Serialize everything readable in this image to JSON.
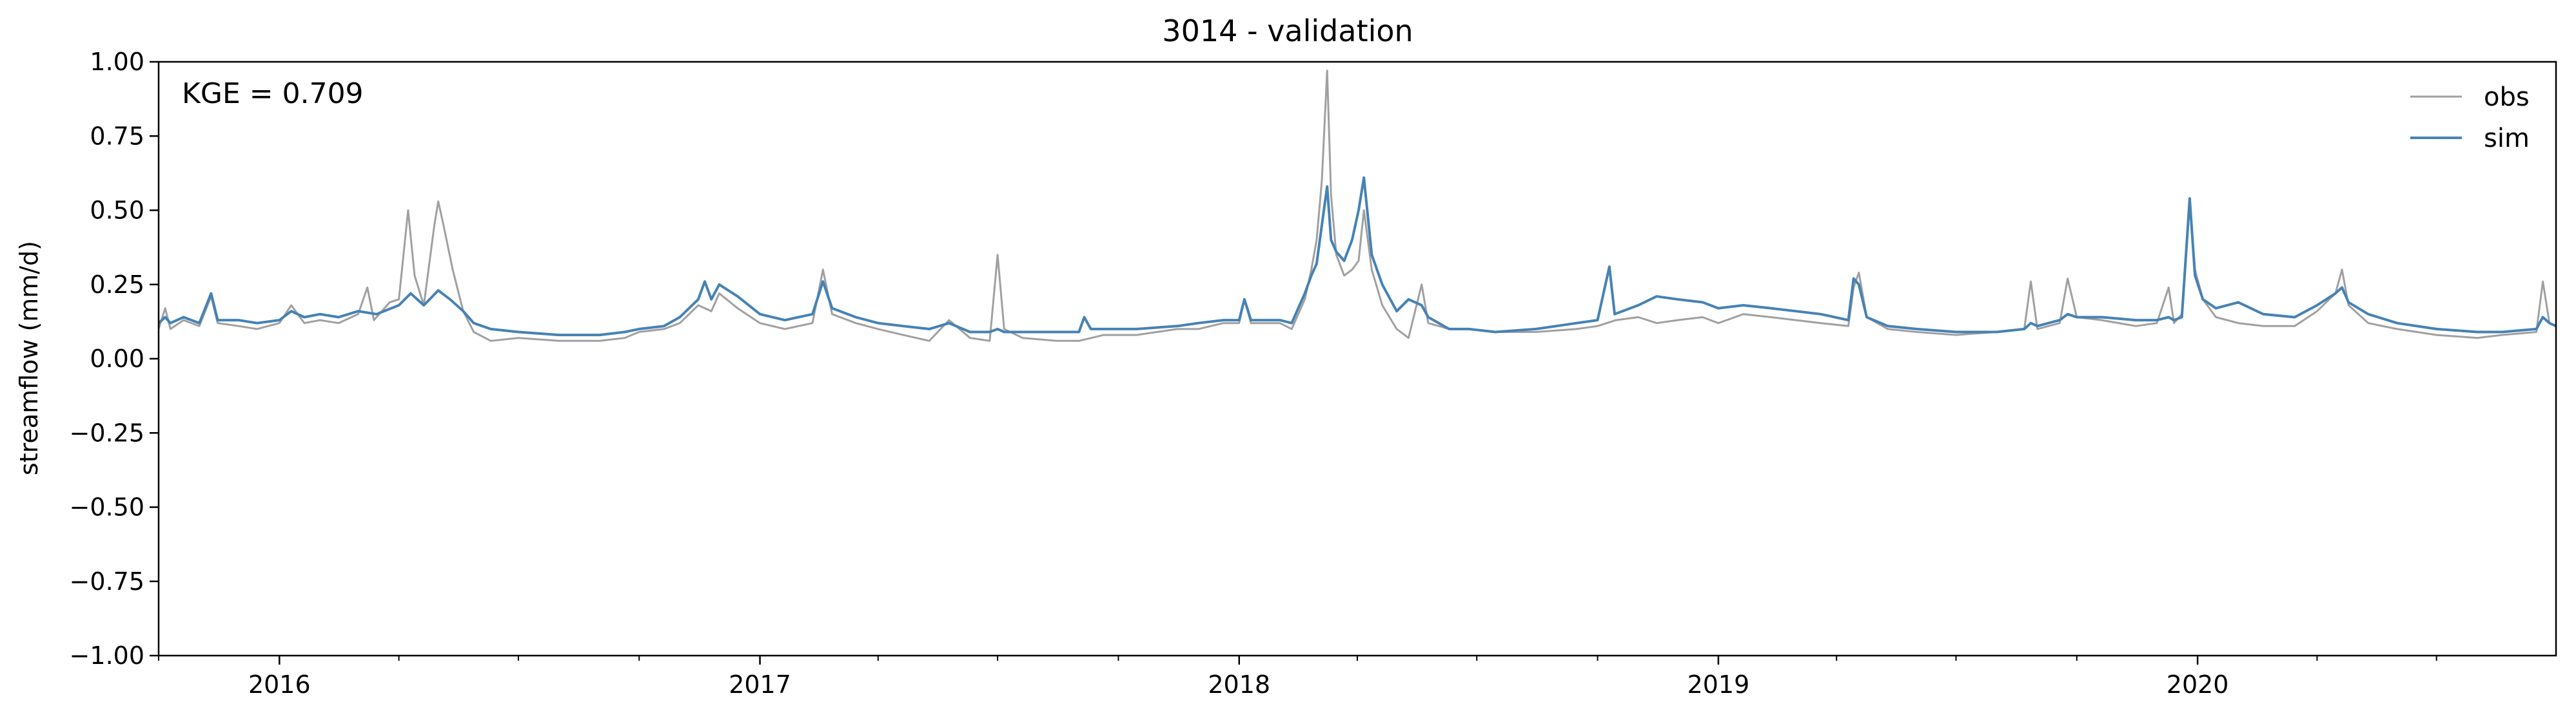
{
  "chart_data": {
    "type": "line",
    "title": "3014 - validation",
    "ylabel": "streamflow (mm/d)",
    "xlabel": "",
    "annotation": "KGE = 0.709",
    "ylim": [
      -1.0,
      1.0
    ],
    "yticks": [
      1.0,
      0.75,
      0.5,
      0.25,
      0.0,
      -0.25,
      -0.5,
      -0.75,
      -1.0
    ],
    "ytick_labels": [
      "1.00",
      "0.75",
      "0.50",
      "0.25",
      "0.00",
      "−0.25",
      "−0.50",
      "−0.75",
      "−1.00"
    ],
    "xlim": [
      "2015-10-01",
      "2020-09-30"
    ],
    "xticks": [
      "2016-01-01",
      "2017-01-01",
      "2018-01-01",
      "2019-01-01",
      "2020-01-01"
    ],
    "xtick_labels": [
      "2016",
      "2017",
      "2018",
      "2019",
      "2020"
    ],
    "grid": false,
    "legend_position": "top-right",
    "series": [
      {
        "name": "obs",
        "color": "#a0a0a0",
        "points": [
          [
            "2015-10-01",
            0.1
          ],
          [
            "2015-10-06",
            0.17
          ],
          [
            "2015-10-10",
            0.1
          ],
          [
            "2015-10-20",
            0.13
          ],
          [
            "2015-11-01",
            0.11
          ],
          [
            "2015-11-10",
            0.21
          ],
          [
            "2015-11-15",
            0.12
          ],
          [
            "2015-12-01",
            0.11
          ],
          [
            "2015-12-15",
            0.1
          ],
          [
            "2016-01-01",
            0.12
          ],
          [
            "2016-01-10",
            0.18
          ],
          [
            "2016-01-20",
            0.12
          ],
          [
            "2016-02-01",
            0.13
          ],
          [
            "2016-02-15",
            0.12
          ],
          [
            "2016-03-01",
            0.15
          ],
          [
            "2016-03-08",
            0.24
          ],
          [
            "2016-03-13",
            0.13
          ],
          [
            "2016-03-25",
            0.19
          ],
          [
            "2016-04-01",
            0.2
          ],
          [
            "2016-04-08",
            0.5
          ],
          [
            "2016-04-13",
            0.28
          ],
          [
            "2016-04-20",
            0.18
          ],
          [
            "2016-04-28",
            0.45
          ],
          [
            "2016-05-01",
            0.53
          ],
          [
            "2016-05-05",
            0.45
          ],
          [
            "2016-05-12",
            0.3
          ],
          [
            "2016-05-20",
            0.16
          ],
          [
            "2016-05-28",
            0.09
          ],
          [
            "2016-06-10",
            0.06
          ],
          [
            "2016-07-01",
            0.07
          ],
          [
            "2016-08-01",
            0.06
          ],
          [
            "2016-09-01",
            0.06
          ],
          [
            "2016-09-20",
            0.07
          ],
          [
            "2016-10-01",
            0.09
          ],
          [
            "2016-10-20",
            0.1
          ],
          [
            "2016-11-01",
            0.12
          ],
          [
            "2016-11-15",
            0.18
          ],
          [
            "2016-11-25",
            0.16
          ],
          [
            "2016-12-01",
            0.22
          ],
          [
            "2016-12-15",
            0.17
          ],
          [
            "2017-01-01",
            0.12
          ],
          [
            "2017-01-20",
            0.1
          ],
          [
            "2017-02-10",
            0.12
          ],
          [
            "2017-02-18",
            0.3
          ],
          [
            "2017-02-25",
            0.15
          ],
          [
            "2017-03-15",
            0.12
          ],
          [
            "2017-04-01",
            0.1
          ],
          [
            "2017-04-20",
            0.08
          ],
          [
            "2017-05-10",
            0.06
          ],
          [
            "2017-05-25",
            0.13
          ],
          [
            "2017-06-10",
            0.07
          ],
          [
            "2017-06-25",
            0.06
          ],
          [
            "2017-07-01",
            0.35
          ],
          [
            "2017-07-06",
            0.1
          ],
          [
            "2017-07-20",
            0.07
          ],
          [
            "2017-08-15",
            0.06
          ],
          [
            "2017-09-01",
            0.06
          ],
          [
            "2017-09-20",
            0.08
          ],
          [
            "2017-10-15",
            0.08
          ],
          [
            "2017-11-15",
            0.1
          ],
          [
            "2017-12-01",
            0.1
          ],
          [
            "2017-12-20",
            0.12
          ],
          [
            "2018-01-01",
            0.12
          ],
          [
            "2018-01-05",
            0.2
          ],
          [
            "2018-01-10",
            0.12
          ],
          [
            "2018-02-01",
            0.12
          ],
          [
            "2018-02-10",
            0.1
          ],
          [
            "2018-02-20",
            0.2
          ],
          [
            "2018-02-25",
            0.3
          ],
          [
            "2018-03-01",
            0.4
          ],
          [
            "2018-03-05",
            0.6
          ],
          [
            "2018-03-09",
            0.97
          ],
          [
            "2018-03-12",
            0.55
          ],
          [
            "2018-03-16",
            0.35
          ],
          [
            "2018-03-22",
            0.28
          ],
          [
            "2018-03-28",
            0.3
          ],
          [
            "2018-04-02",
            0.33
          ],
          [
            "2018-04-06",
            0.5
          ],
          [
            "2018-04-12",
            0.3
          ],
          [
            "2018-04-20",
            0.18
          ],
          [
            "2018-05-01",
            0.1
          ],
          [
            "2018-05-10",
            0.07
          ],
          [
            "2018-05-20",
            0.25
          ],
          [
            "2018-05-25",
            0.12
          ],
          [
            "2018-06-10",
            0.1
          ],
          [
            "2018-06-25",
            0.1
          ],
          [
            "2018-07-15",
            0.09
          ],
          [
            "2018-08-15",
            0.09
          ],
          [
            "2018-09-15",
            0.1
          ],
          [
            "2018-10-01",
            0.11
          ],
          [
            "2018-10-15",
            0.13
          ],
          [
            "2018-11-01",
            0.14
          ],
          [
            "2018-11-15",
            0.12
          ],
          [
            "2018-12-01",
            0.13
          ],
          [
            "2018-12-20",
            0.14
          ],
          [
            "2019-01-01",
            0.12
          ],
          [
            "2019-01-20",
            0.15
          ],
          [
            "2019-02-10",
            0.14
          ],
          [
            "2019-03-01",
            0.13
          ],
          [
            "2019-03-20",
            0.12
          ],
          [
            "2019-04-10",
            0.11
          ],
          [
            "2019-04-14",
            0.24
          ],
          [
            "2019-04-18",
            0.29
          ],
          [
            "2019-04-24",
            0.14
          ],
          [
            "2019-05-10",
            0.1
          ],
          [
            "2019-06-01",
            0.09
          ],
          [
            "2019-07-01",
            0.08
          ],
          [
            "2019-08-01",
            0.09
          ],
          [
            "2019-08-22",
            0.1
          ],
          [
            "2019-08-27",
            0.26
          ],
          [
            "2019-09-01",
            0.1
          ],
          [
            "2019-09-18",
            0.12
          ],
          [
            "2019-09-24",
            0.27
          ],
          [
            "2019-10-01",
            0.14
          ],
          [
            "2019-10-20",
            0.13
          ],
          [
            "2019-11-15",
            0.11
          ],
          [
            "2019-12-01",
            0.12
          ],
          [
            "2019-12-10",
            0.24
          ],
          [
            "2019-12-14",
            0.12
          ],
          [
            "2019-12-20",
            0.15
          ],
          [
            "2019-12-26",
            0.52
          ],
          [
            "2019-12-30",
            0.3
          ],
          [
            "2020-01-05",
            0.2
          ],
          [
            "2020-01-15",
            0.14
          ],
          [
            "2020-02-01",
            0.12
          ],
          [
            "2020-02-20",
            0.11
          ],
          [
            "2020-03-15",
            0.11
          ],
          [
            "2020-04-01",
            0.16
          ],
          [
            "2020-04-15",
            0.22
          ],
          [
            "2020-04-20",
            0.3
          ],
          [
            "2020-04-25",
            0.18
          ],
          [
            "2020-05-10",
            0.12
          ],
          [
            "2020-06-01",
            0.1
          ],
          [
            "2020-07-01",
            0.08
          ],
          [
            "2020-08-01",
            0.07
          ],
          [
            "2020-08-20",
            0.08
          ],
          [
            "2020-09-15",
            0.09
          ],
          [
            "2020-09-20",
            0.26
          ],
          [
            "2020-09-25",
            0.12
          ],
          [
            "2020-09-30",
            0.11
          ]
        ]
      },
      {
        "name": "sim",
        "color": "#4682b4",
        "points": [
          [
            "2015-10-01",
            0.12
          ],
          [
            "2015-10-06",
            0.14
          ],
          [
            "2015-10-10",
            0.12
          ],
          [
            "2015-10-20",
            0.14
          ],
          [
            "2015-11-01",
            0.12
          ],
          [
            "2015-11-10",
            0.22
          ],
          [
            "2015-11-15",
            0.13
          ],
          [
            "2015-12-01",
            0.13
          ],
          [
            "2015-12-15",
            0.12
          ],
          [
            "2016-01-01",
            0.13
          ],
          [
            "2016-01-10",
            0.16
          ],
          [
            "2016-01-20",
            0.14
          ],
          [
            "2016-02-01",
            0.15
          ],
          [
            "2016-02-15",
            0.14
          ],
          [
            "2016-03-01",
            0.16
          ],
          [
            "2016-03-15",
            0.15
          ],
          [
            "2016-04-01",
            0.18
          ],
          [
            "2016-04-10",
            0.22
          ],
          [
            "2016-04-20",
            0.18
          ],
          [
            "2016-05-01",
            0.23
          ],
          [
            "2016-05-10",
            0.2
          ],
          [
            "2016-05-20",
            0.16
          ],
          [
            "2016-05-28",
            0.12
          ],
          [
            "2016-06-10",
            0.1
          ],
          [
            "2016-07-01",
            0.09
          ],
          [
            "2016-08-01",
            0.08
          ],
          [
            "2016-09-01",
            0.08
          ],
          [
            "2016-09-20",
            0.09
          ],
          [
            "2016-10-01",
            0.1
          ],
          [
            "2016-10-20",
            0.11
          ],
          [
            "2016-11-01",
            0.14
          ],
          [
            "2016-11-15",
            0.2
          ],
          [
            "2016-11-20",
            0.26
          ],
          [
            "2016-11-25",
            0.2
          ],
          [
            "2016-12-01",
            0.25
          ],
          [
            "2016-12-15",
            0.21
          ],
          [
            "2017-01-01",
            0.15
          ],
          [
            "2017-01-20",
            0.13
          ],
          [
            "2017-02-10",
            0.15
          ],
          [
            "2017-02-18",
            0.26
          ],
          [
            "2017-02-25",
            0.17
          ],
          [
            "2017-03-15",
            0.14
          ],
          [
            "2017-04-01",
            0.12
          ],
          [
            "2017-04-20",
            0.11
          ],
          [
            "2017-05-10",
            0.1
          ],
          [
            "2017-05-25",
            0.12
          ],
          [
            "2017-06-10",
            0.09
          ],
          [
            "2017-06-25",
            0.09
          ],
          [
            "2017-07-01",
            0.1
          ],
          [
            "2017-07-06",
            0.09
          ],
          [
            "2017-07-20",
            0.09
          ],
          [
            "2017-08-15",
            0.09
          ],
          [
            "2017-09-01",
            0.09
          ],
          [
            "2017-09-05",
            0.14
          ],
          [
            "2017-09-10",
            0.1
          ],
          [
            "2017-10-15",
            0.1
          ],
          [
            "2017-11-15",
            0.11
          ],
          [
            "2017-12-01",
            0.12
          ],
          [
            "2017-12-20",
            0.13
          ],
          [
            "2018-01-01",
            0.13
          ],
          [
            "2018-01-05",
            0.2
          ],
          [
            "2018-01-10",
            0.13
          ],
          [
            "2018-02-01",
            0.13
          ],
          [
            "2018-02-10",
            0.12
          ],
          [
            "2018-02-20",
            0.22
          ],
          [
            "2018-02-25",
            0.28
          ],
          [
            "2018-03-01",
            0.32
          ],
          [
            "2018-03-05",
            0.45
          ],
          [
            "2018-03-09",
            0.58
          ],
          [
            "2018-03-12",
            0.4
          ],
          [
            "2018-03-16",
            0.36
          ],
          [
            "2018-03-22",
            0.33
          ],
          [
            "2018-03-28",
            0.4
          ],
          [
            "2018-04-02",
            0.5
          ],
          [
            "2018-04-06",
            0.61
          ],
          [
            "2018-04-12",
            0.35
          ],
          [
            "2018-04-20",
            0.25
          ],
          [
            "2018-05-01",
            0.16
          ],
          [
            "2018-05-10",
            0.2
          ],
          [
            "2018-05-20",
            0.18
          ],
          [
            "2018-05-25",
            0.14
          ],
          [
            "2018-06-10",
            0.1
          ],
          [
            "2018-06-25",
            0.1
          ],
          [
            "2018-07-15",
            0.09
          ],
          [
            "2018-08-15",
            0.1
          ],
          [
            "2018-09-15",
            0.12
          ],
          [
            "2018-10-01",
            0.13
          ],
          [
            "2018-10-10",
            0.31
          ],
          [
            "2018-10-14",
            0.15
          ],
          [
            "2018-11-01",
            0.18
          ],
          [
            "2018-11-15",
            0.21
          ],
          [
            "2018-12-01",
            0.2
          ],
          [
            "2018-12-20",
            0.19
          ],
          [
            "2019-01-01",
            0.17
          ],
          [
            "2019-01-20",
            0.18
          ],
          [
            "2019-02-10",
            0.17
          ],
          [
            "2019-03-01",
            0.16
          ],
          [
            "2019-03-20",
            0.15
          ],
          [
            "2019-04-10",
            0.13
          ],
          [
            "2019-04-14",
            0.27
          ],
          [
            "2019-04-18",
            0.25
          ],
          [
            "2019-04-24",
            0.14
          ],
          [
            "2019-05-10",
            0.11
          ],
          [
            "2019-06-01",
            0.1
          ],
          [
            "2019-07-01",
            0.09
          ],
          [
            "2019-08-01",
            0.09
          ],
          [
            "2019-08-22",
            0.1
          ],
          [
            "2019-08-27",
            0.12
          ],
          [
            "2019-09-01",
            0.11
          ],
          [
            "2019-09-18",
            0.13
          ],
          [
            "2019-09-24",
            0.15
          ],
          [
            "2019-10-01",
            0.14
          ],
          [
            "2019-10-20",
            0.14
          ],
          [
            "2019-11-15",
            0.13
          ],
          [
            "2019-12-01",
            0.13
          ],
          [
            "2019-12-10",
            0.14
          ],
          [
            "2019-12-14",
            0.13
          ],
          [
            "2019-12-20",
            0.14
          ],
          [
            "2019-12-26",
            0.54
          ],
          [
            "2019-12-30",
            0.28
          ],
          [
            "2020-01-05",
            0.2
          ],
          [
            "2020-01-15",
            0.17
          ],
          [
            "2020-02-01",
            0.19
          ],
          [
            "2020-02-20",
            0.15
          ],
          [
            "2020-03-15",
            0.14
          ],
          [
            "2020-04-01",
            0.18
          ],
          [
            "2020-04-15",
            0.22
          ],
          [
            "2020-04-20",
            0.24
          ],
          [
            "2020-04-25",
            0.19
          ],
          [
            "2020-05-10",
            0.15
          ],
          [
            "2020-06-01",
            0.12
          ],
          [
            "2020-07-01",
            0.1
          ],
          [
            "2020-08-01",
            0.09
          ],
          [
            "2020-08-20",
            0.09
          ],
          [
            "2020-09-15",
            0.1
          ],
          [
            "2020-09-20",
            0.14
          ],
          [
            "2020-09-25",
            0.12
          ],
          [
            "2020-09-30",
            0.11
          ]
        ]
      }
    ]
  }
}
